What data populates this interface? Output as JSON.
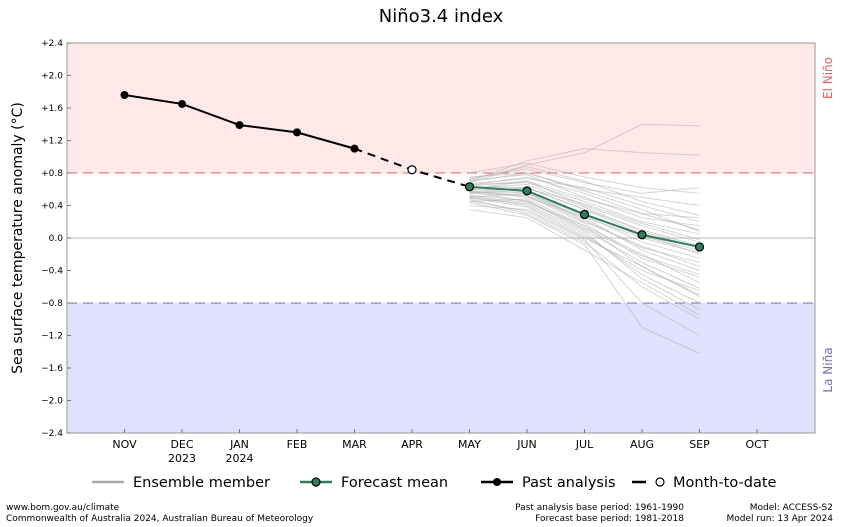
{
  "chart_data": {
    "type": "line",
    "title": "Niño3.4 index",
    "ylabel": "Sea surface temperature anomaly (°C)",
    "ylim": [
      -2.4,
      2.4
    ],
    "y_ticks": [
      2.4,
      2.0,
      1.6,
      1.2,
      0.8,
      0.4,
      0.0,
      -0.4,
      -0.8,
      -1.2,
      -1.6,
      -2.0,
      -2.4
    ],
    "y_tick_labels": [
      "+2.4",
      "+2.0",
      "+1.6",
      "+1.2",
      "+0.8",
      "+0.4",
      "0.0",
      "−0.4",
      "−0.8",
      "−1.2",
      "−1.6",
      "−2.0",
      "−2.4"
    ],
    "categories": [
      "NOV",
      "DEC",
      "JAN",
      "FEB",
      "MAR",
      "APR",
      "MAY",
      "JUN",
      "JUL",
      "AUG",
      "SEP",
      "OCT"
    ],
    "year_labels": [
      {
        "month": "DEC",
        "text": "2023"
      },
      {
        "month": "JAN",
        "text": "2024"
      }
    ],
    "thresholds": [
      {
        "value": 0.8,
        "label": "El Niño",
        "color": "#e06060",
        "fill": "#ffe8e8"
      },
      {
        "value": -0.8,
        "label": "La Niña",
        "color": "#7070b0",
        "fill": "#e0e0ff"
      }
    ],
    "series": [
      {
        "name": "Past analysis",
        "color": "#000000",
        "x": [
          "NOV",
          "DEC",
          "JAN",
          "FEB",
          "MAR"
        ],
        "values": [
          1.76,
          1.65,
          1.39,
          1.3,
          1.1
        ]
      },
      {
        "name": "Month-to-date",
        "color": "#000000",
        "x": [
          "APR"
        ],
        "values": [
          0.84
        ]
      },
      {
        "name": "Forecast mean",
        "color": "#2e7d5b",
        "x": [
          "MAY",
          "JUN",
          "JUL",
          "AUG",
          "SEP"
        ],
        "values": [
          0.63,
          0.58,
          0.29,
          0.04,
          -0.11
        ]
      }
    ],
    "ensemble": {
      "name": "Ensemble member",
      "color": "#b0b0b0",
      "x": [
        "MAY",
        "JUN",
        "JUL",
        "AUG",
        "SEP"
      ],
      "members": [
        [
          0.8,
          0.92,
          0.75,
          0.62,
          0.55
        ],
        [
          0.72,
          0.88,
          0.7,
          0.45,
          0.28
        ],
        [
          0.65,
          0.75,
          0.55,
          0.3,
          0.1
        ],
        [
          0.6,
          0.7,
          0.4,
          0.15,
          -0.05
        ],
        [
          0.55,
          0.62,
          0.35,
          0.05,
          -0.2
        ],
        [
          0.5,
          0.55,
          0.2,
          -0.1,
          -0.35
        ],
        [
          0.45,
          0.48,
          0.15,
          -0.2,
          -0.55
        ],
        [
          0.4,
          0.35,
          0.0,
          -0.35,
          -0.7
        ],
        [
          0.35,
          0.25,
          -0.15,
          -0.55,
          -0.95
        ],
        [
          0.7,
          0.95,
          1.1,
          1.05,
          1.02
        ],
        [
          0.68,
          0.9,
          1.05,
          1.4,
          1.38
        ],
        [
          0.75,
          0.8,
          0.6,
          0.5,
          0.4
        ],
        [
          0.62,
          0.58,
          0.3,
          0.02,
          -0.15
        ],
        [
          0.58,
          0.5,
          0.25,
          -0.15,
          -0.4
        ],
        [
          0.66,
          0.68,
          0.45,
          0.2,
          0.05
        ],
        [
          0.52,
          0.4,
          0.05,
          -0.45,
          -0.8
        ],
        [
          0.48,
          0.3,
          -0.05,
          -0.6,
          -1.0
        ],
        [
          0.57,
          0.45,
          0.1,
          -0.3,
          -0.62
        ],
        [
          0.63,
          0.62,
          0.35,
          0.1,
          -0.1
        ],
        [
          0.71,
          0.78,
          0.5,
          0.25,
          0.15
        ],
        [
          0.6,
          0.55,
          0.28,
          -0.05,
          -0.25
        ],
        [
          0.55,
          0.52,
          0.18,
          -0.25,
          -0.48
        ],
        [
          0.5,
          0.38,
          0.02,
          -0.4,
          -0.65
        ],
        [
          0.44,
          0.28,
          -0.08,
          -1.1,
          -1.42
        ],
        [
          0.67,
          0.73,
          0.62,
          0.4,
          0.2
        ],
        [
          0.59,
          0.61,
          0.42,
          0.18,
          -0.02
        ],
        [
          0.53,
          0.46,
          0.12,
          -0.22,
          -0.45
        ],
        [
          0.74,
          0.85,
          0.68,
          0.55,
          0.62
        ],
        [
          0.61,
          0.66,
          0.38,
          0.08,
          -0.12
        ],
        [
          0.49,
          0.42,
          0.08,
          -0.5,
          -0.88
        ],
        [
          0.64,
          0.7,
          0.48,
          0.3,
          0.25
        ],
        [
          0.56,
          0.57,
          0.22,
          -0.12,
          -0.3
        ],
        [
          0.46,
          0.33,
          -0.02,
          -0.8,
          -1.2
        ],
        [
          0.69,
          0.8,
          0.58,
          0.35,
          0.08
        ],
        [
          0.58,
          0.52,
          0.26,
          0.0,
          -0.18
        ],
        [
          0.51,
          0.44,
          0.15,
          -0.35,
          -0.72
        ]
      ]
    },
    "legend": {
      "placement": "bottom",
      "items": [
        {
          "label": "Ensemble member",
          "style": "gray-line"
        },
        {
          "label": "Forecast mean",
          "style": "green-line-dot"
        },
        {
          "label": "Past analysis",
          "style": "black-line-dot"
        },
        {
          "label": "Month-to-date",
          "style": "dash-open-dot"
        }
      ]
    }
  },
  "footer": {
    "website": "www.bom.gov.au/climate",
    "copyright": "Commonwealth of Australia 2024, Australian Bureau of Meteorology",
    "past_base": "Past analysis base period: 1961-1990",
    "forecast_base": "Forecast base period: 1981-2018",
    "model": "Model: ACCESS-S2",
    "model_run": "Model run: 13 Apr 2024"
  }
}
